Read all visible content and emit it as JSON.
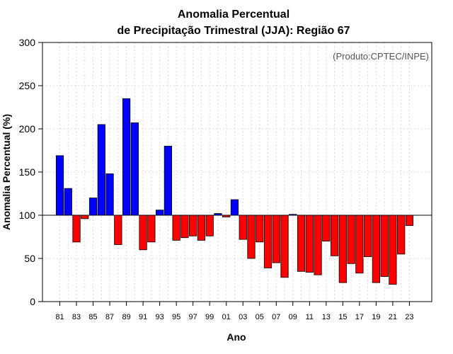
{
  "chart_data": {
    "type": "bar",
    "title": "Anomalia Percentual",
    "subtitle": "de Precipitação Trimestral (JJA): Região 67",
    "xlabel": "Ano",
    "ylabel": "Anomalia Percentual (%)",
    "annotation": "(Produto:CPTEC/INPE)",
    "ylim": [
      0,
      300
    ],
    "yticks": [
      0,
      50,
      100,
      150,
      200,
      250,
      300
    ],
    "baseline": 100,
    "grid": true,
    "colors": {
      "above": "#0000ff",
      "below": "#ff0000",
      "outline": "#000000",
      "baseline": "#000000"
    },
    "categories": [
      "81",
      "82",
      "83",
      "84",
      "85",
      "86",
      "87",
      "88",
      "89",
      "90",
      "91",
      "92",
      "93",
      "94",
      "95",
      "96",
      "97",
      "98",
      "99",
      "00",
      "01",
      "02",
      "03",
      "04",
      "05",
      "06",
      "07",
      "08",
      "09",
      "10",
      "11",
      "12",
      "13",
      "14",
      "15",
      "16",
      "17",
      "18",
      "19",
      "20",
      "21",
      "22",
      "23"
    ],
    "tick_labels": [
      "81",
      "83",
      "85",
      "87",
      "89",
      "91",
      "93",
      "95",
      "97",
      "99",
      "01",
      "03",
      "05",
      "07",
      "09",
      "11",
      "13",
      "15",
      "17",
      "19",
      "21",
      "23"
    ],
    "values": [
      169,
      131,
      69,
      96,
      120,
      205,
      148,
      66,
      235,
      207,
      60,
      69,
      106,
      180,
      71,
      74,
      76,
      71,
      76,
      102,
      98,
      118,
      72,
      50,
      69,
      39,
      45,
      28,
      101,
      35,
      34,
      31,
      70,
      53,
      22,
      44,
      33,
      52,
      22,
      29,
      20,
      55,
      88
    ]
  }
}
